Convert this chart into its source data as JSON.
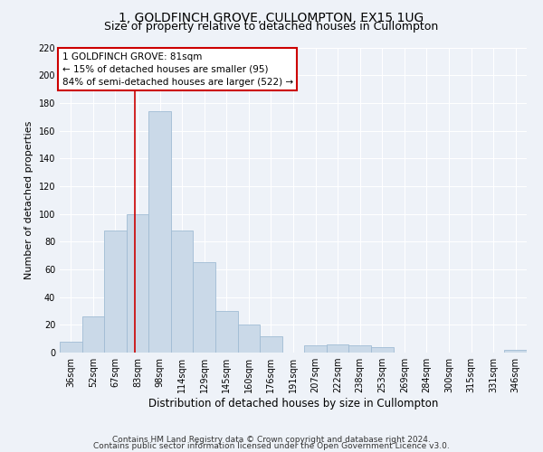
{
  "title": "1, GOLDFINCH GROVE, CULLOMPTON, EX15 1UG",
  "subtitle": "Size of property relative to detached houses in Cullompton",
  "xlabel": "Distribution of detached houses by size in Cullompton",
  "ylabel": "Number of detached properties",
  "categories": [
    "36sqm",
    "52sqm",
    "67sqm",
    "83sqm",
    "98sqm",
    "114sqm",
    "129sqm",
    "145sqm",
    "160sqm",
    "176sqm",
    "191sqm",
    "207sqm",
    "222sqm",
    "238sqm",
    "253sqm",
    "269sqm",
    "284sqm",
    "300sqm",
    "315sqm",
    "331sqm",
    "346sqm"
  ],
  "values": [
    8,
    26,
    88,
    100,
    174,
    88,
    65,
    30,
    20,
    12,
    0,
    5,
    6,
    5,
    4,
    0,
    0,
    0,
    0,
    0,
    2
  ],
  "bar_color": "#cad9e8",
  "bar_edge_color": "#a0bcd4",
  "annotation_line1": "1 GOLDFINCH GROVE: 81sqm",
  "annotation_line2": "← 15% of detached houses are smaller (95)",
  "annotation_line3": "84% of semi-detached houses are larger (522) →",
  "annotation_box_facecolor": "#ffffff",
  "annotation_box_edgecolor": "#cc0000",
  "vertical_line_color": "#cc0000",
  "vertical_line_index": 2.87,
  "ylim": [
    0,
    220
  ],
  "yticks": [
    0,
    20,
    40,
    60,
    80,
    100,
    120,
    140,
    160,
    180,
    200,
    220
  ],
  "background_color": "#eef2f8",
  "grid_color": "#ffffff",
  "footer1": "Contains HM Land Registry data © Crown copyright and database right 2024.",
  "footer2": "Contains public sector information licensed under the Open Government Licence v3.0.",
  "title_fontsize": 10,
  "subtitle_fontsize": 9,
  "xlabel_fontsize": 8.5,
  "ylabel_fontsize": 8,
  "tick_fontsize": 7,
  "footer_fontsize": 6.5,
  "annotation_fontsize": 7.5
}
